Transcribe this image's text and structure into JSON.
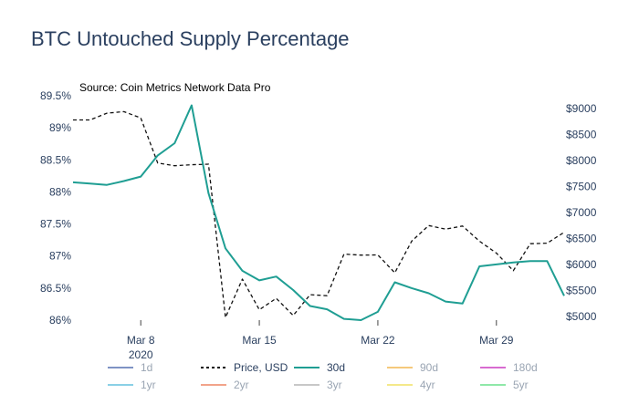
{
  "chart_data": {
    "type": "line",
    "title": "BTC Untouched Supply Percentage",
    "annotation": "Source: Coin Metrics Network Data Pro",
    "x_ticks": [
      {
        "day": 8,
        "label": "Mar 8",
        "sublabel": "2020"
      },
      {
        "day": 15,
        "label": "Mar 15",
        "sublabel": ""
      },
      {
        "day": 22,
        "label": "Mar 22",
        "sublabel": ""
      },
      {
        "day": 29,
        "label": "Mar 29",
        "sublabel": ""
      }
    ],
    "y_left": {
      "range": [
        86,
        89.5
      ],
      "ticks": [
        86,
        86.5,
        87,
        87.5,
        88,
        88.5,
        89,
        89.5
      ],
      "tick_labels": [
        "86%",
        "86.5%",
        "87%",
        "87.5%",
        "88%",
        "88.5%",
        "89%",
        "89.5%"
      ]
    },
    "y_right": {
      "range": [
        5000,
        9000
      ],
      "ticks": [
        5000,
        5500,
        6000,
        6500,
        7000,
        7500,
        8000,
        8500,
        9000
      ],
      "tick_labels": [
        "$5000",
        "$5500",
        "$6000",
        "$6500",
        "$7000",
        "$7500",
        "$8000",
        "$8500",
        "$9000"
      ]
    },
    "series": [
      {
        "name": "Price, USD",
        "axis": "right",
        "style": "dashed",
        "color": "#111111",
        "points": [
          [
            4,
            8780
          ],
          [
            5,
            8780
          ],
          [
            6,
            8910
          ],
          [
            7,
            8940
          ],
          [
            8,
            8820
          ],
          [
            9,
            7950
          ],
          [
            10,
            7900
          ],
          [
            11,
            7920
          ],
          [
            12,
            7930
          ],
          [
            13,
            4980
          ],
          [
            14,
            5720
          ],
          [
            15,
            5130
          ],
          [
            16,
            5350
          ],
          [
            17,
            5020
          ],
          [
            18,
            5420
          ],
          [
            19,
            5400
          ],
          [
            20,
            6200
          ],
          [
            21,
            6180
          ],
          [
            22,
            6185
          ],
          [
            23,
            5840
          ],
          [
            24,
            6450
          ],
          [
            25,
            6750
          ],
          [
            26,
            6680
          ],
          [
            27,
            6740
          ],
          [
            28,
            6450
          ],
          [
            29,
            6220
          ],
          [
            30,
            5880
          ],
          [
            31,
            6400
          ],
          [
            32,
            6410
          ],
          [
            33,
            6620
          ]
        ]
      },
      {
        "name": "30d",
        "axis": "left",
        "style": "solid",
        "color": "#1f9e93",
        "points": [
          [
            4,
            88.15
          ],
          [
            5,
            88.13
          ],
          [
            6,
            88.11
          ],
          [
            7,
            88.17
          ],
          [
            8,
            88.24
          ],
          [
            9,
            88.57
          ],
          [
            10,
            88.76
          ],
          [
            11,
            89.35
          ],
          [
            12,
            87.98
          ],
          [
            13,
            87.12
          ],
          [
            14,
            86.77
          ],
          [
            15,
            86.62
          ],
          [
            16,
            86.68
          ],
          [
            17,
            86.47
          ],
          [
            18,
            86.22
          ],
          [
            19,
            86.17
          ],
          [
            20,
            86.02
          ],
          [
            21,
            86.0
          ],
          [
            22,
            86.13
          ],
          [
            23,
            86.59
          ],
          [
            24,
            86.5
          ],
          [
            25,
            86.42
          ],
          [
            26,
            86.29
          ],
          [
            27,
            86.26
          ],
          [
            28,
            86.84
          ],
          [
            29,
            86.87
          ],
          [
            30,
            86.9
          ],
          [
            31,
            86.92
          ],
          [
            32,
            86.92
          ],
          [
            33,
            86.38
          ]
        ]
      }
    ],
    "legend": {
      "position": "bottom",
      "items": [
        {
          "name": "1d",
          "color": "#7f93c4",
          "style": "solid",
          "active": false
        },
        {
          "name": "Price, USD",
          "color": "#111111",
          "style": "dashed",
          "active": true
        },
        {
          "name": "30d",
          "color": "#1f9e93",
          "style": "solid",
          "active": true
        },
        {
          "name": "90d",
          "color": "#f5c97c",
          "style": "solid",
          "active": false
        },
        {
          "name": "180d",
          "color": "#d86bd0",
          "style": "solid",
          "active": false
        },
        {
          "name": "1yr",
          "color": "#8ad0e6",
          "style": "solid",
          "active": false
        },
        {
          "name": "2yr",
          "color": "#f2a48a",
          "style": "solid",
          "active": false
        },
        {
          "name": "3yr",
          "color": "#c8c8c8",
          "style": "solid",
          "active": false
        },
        {
          "name": "4yr",
          "color": "#f4e98a",
          "style": "solid",
          "active": false
        },
        {
          "name": "5yr",
          "color": "#8fe8a8",
          "style": "solid",
          "active": false
        }
      ]
    },
    "grid": false
  }
}
